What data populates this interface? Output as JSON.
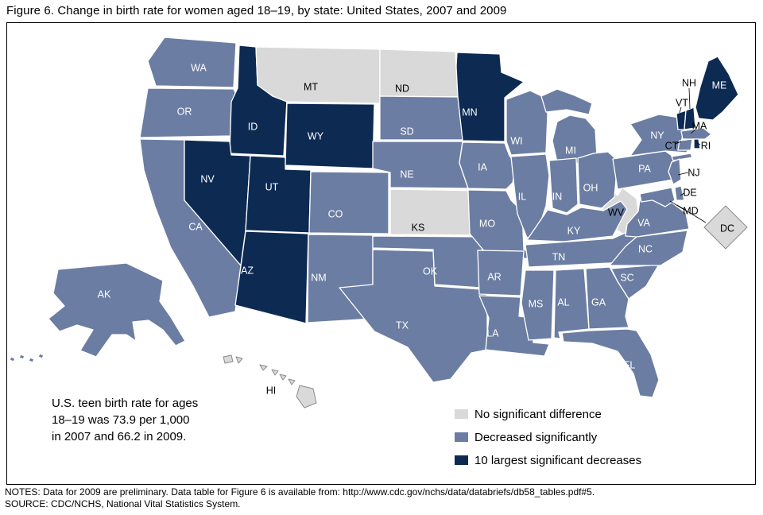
{
  "title": "Figure 6. Change in birth rate for women aged 18–19, by state: United States, 2007 and 2009",
  "annotation": {
    "lines": [
      "U.S. teen birth rate for ages",
      "18–19 was 73.9 per 1,000",
      "in 2007 and 66.2 in 2009."
    ]
  },
  "legend": [
    {
      "key": "none",
      "label": "No significant difference",
      "color": "#d9d9d9"
    },
    {
      "key": "decrease",
      "label": "Decreased significantly",
      "color": "#6b7da2"
    },
    {
      "key": "largest",
      "label": "10 largest significant decreases",
      "color": "#0d2a52"
    }
  ],
  "notes": "NOTES: Data for 2009 are preliminary. Data table for Figure 6 is available from: http://www.cdc.gov/nchs/data/databriefs/db58_tables.pdf#5.",
  "source": "SOURCE: CDC/NCHS, National Vital Statistics System.",
  "chart_data": {
    "type": "choropleth",
    "region": "United States",
    "measure": "Change in birth rate for women aged 18–19, 2007 to 2009",
    "us_rate_per_1000": {
      "2007": 73.9,
      "2009": 66.2
    },
    "categories": [
      "No significant difference",
      "Decreased significantly",
      "10 largest significant decreases"
    ],
    "state_categories": {
      "WA": "decrease",
      "OR": "decrease",
      "CA": "decrease",
      "AK": "decrease",
      "ID": "largest",
      "NV": "largest",
      "UT": "largest",
      "AZ": "largest",
      "WY": "largest",
      "MN": "largest",
      "MT": "none",
      "ND": "none",
      "KS": "none",
      "WV": "none",
      "DC": "none",
      "HI": "none",
      "CO": "decrease",
      "NM": "decrease",
      "TX": "decrease",
      "OK": "decrease",
      "NE": "decrease",
      "SD": "decrease",
      "IA": "decrease",
      "MO": "decrease",
      "AR": "decrease",
      "LA": "decrease",
      "WI": "decrease",
      "IL": "decrease",
      "MS": "decrease",
      "MI": "decrease",
      "IN": "decrease",
      "OH": "decrease",
      "KY": "decrease",
      "TN": "decrease",
      "AL": "decrease",
      "GA": "decrease",
      "FL": "decrease",
      "SC": "decrease",
      "NC": "decrease",
      "VA": "decrease",
      "PA": "decrease",
      "NY": "decrease",
      "NJ": "decrease",
      "DE": "decrease",
      "MD": "decrease",
      "MA": "decrease",
      "CT": "decrease",
      "RI": "largest",
      "VT": "largest",
      "NH": "largest",
      "ME": "largest"
    }
  }
}
